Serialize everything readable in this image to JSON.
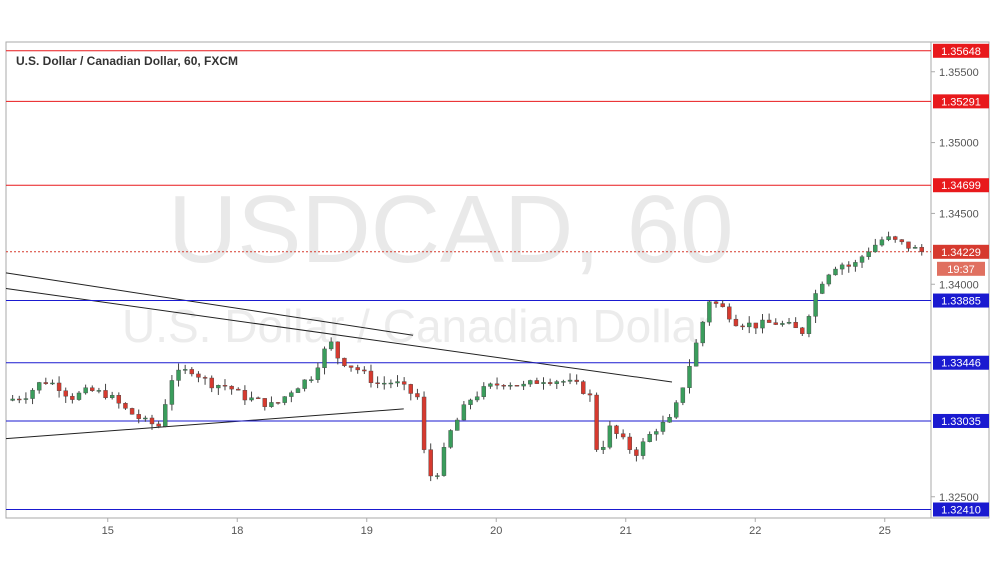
{
  "chart_data": {
    "type": "candlestick",
    "title": "U.S. Dollar / Canadian Dollar, 60, FXCM",
    "watermark": "USDCAD, 60",
    "watermark_sub": "U.S. Dollar / Canadian Dollar",
    "ylim": [
      1.3235,
      1.3571
    ],
    "y_ticks": [
      "1.35500",
      "1.35000",
      "1.34500",
      "1.34000",
      "1.32500"
    ],
    "x_ticks": [
      "15",
      "18",
      "19",
      "20",
      "21",
      "22",
      "25"
    ],
    "current_price": "1.34229",
    "countdown": "19:37",
    "levels": [
      {
        "value": 1.35648,
        "label": "1.35648",
        "color": "#e8191c"
      },
      {
        "value": 1.35291,
        "label": "1.35291",
        "color": "#e8191c"
      },
      {
        "value": 1.34699,
        "label": "1.34699",
        "color": "#e8191c"
      },
      {
        "value": 1.33885,
        "label": "1.33885",
        "color": "#1a1ad0"
      },
      {
        "value": 1.33446,
        "label": "1.33446",
        "color": "#1a1ad0"
      },
      {
        "value": 1.33035,
        "label": "1.33035",
        "color": "#1a1ad0"
      },
      {
        "value": 1.3241,
        "label": "1.32410",
        "color": "#1a1ad0"
      }
    ],
    "colors": {
      "up": "#3a9d5c",
      "down": "#d63a2f",
      "resistance": "#e8191c",
      "support": "#1a1ad0",
      "trendline": "#222222"
    },
    "trendlines": [
      {
        "x1": 0.0,
        "y1": 1.3408,
        "x2": 0.44,
        "y2": 1.3364
      },
      {
        "x1": 0.0,
        "y1": 1.3397,
        "x2": 0.72,
        "y2": 1.3331
      },
      {
        "x1": 0.0,
        "y1": 1.3291,
        "x2": 0.43,
        "y2": 1.3312
      }
    ],
    "price_path": [
      [
        0.0,
        1.3318
      ],
      [
        0.02,
        1.3321
      ],
      [
        0.04,
        1.3332
      ],
      [
        0.055,
        1.3329
      ],
      [
        0.07,
        1.332
      ],
      [
        0.09,
        1.3325
      ],
      [
        0.11,
        1.3322
      ],
      [
        0.13,
        1.3311
      ],
      [
        0.15,
        1.3303
      ],
      [
        0.165,
        1.33
      ],
      [
        0.18,
        1.3335
      ],
      [
        0.2,
        1.334
      ],
      [
        0.22,
        1.333
      ],
      [
        0.24,
        1.3328
      ],
      [
        0.255,
        1.3321
      ],
      [
        0.27,
        1.3318
      ],
      [
        0.29,
        1.3314
      ],
      [
        0.31,
        1.3326
      ],
      [
        0.33,
        1.3335
      ],
      [
        0.35,
        1.336
      ],
      [
        0.36,
        1.3347
      ],
      [
        0.38,
        1.334
      ],
      [
        0.4,
        1.333
      ],
      [
        0.42,
        1.3331
      ],
      [
        0.445,
        1.332
      ],
      [
        0.455,
        1.3265
      ],
      [
        0.465,
        1.3265
      ],
      [
        0.48,
        1.3295
      ],
      [
        0.5,
        1.3318
      ],
      [
        0.52,
        1.3327
      ],
      [
        0.54,
        1.3331
      ],
      [
        0.56,
        1.3328
      ],
      [
        0.58,
        1.3333
      ],
      [
        0.6,
        1.3332
      ],
      [
        0.62,
        1.3328
      ],
      [
        0.635,
        1.3318
      ],
      [
        0.64,
        1.327
      ],
      [
        0.65,
        1.33
      ],
      [
        0.665,
        1.3291
      ],
      [
        0.68,
        1.328
      ],
      [
        0.7,
        1.3297
      ],
      [
        0.72,
        1.3305
      ],
      [
        0.735,
        1.3335
      ],
      [
        0.75,
        1.3366
      ],
      [
        0.76,
        1.3389
      ],
      [
        0.775,
        1.3383
      ],
      [
        0.79,
        1.3373
      ],
      [
        0.81,
        1.3371
      ],
      [
        0.83,
        1.3373
      ],
      [
        0.85,
        1.337
      ],
      [
        0.86,
        1.3365
      ],
      [
        0.875,
        1.3393
      ],
      [
        0.885,
        1.3406
      ],
      [
        0.9,
        1.3415
      ],
      [
        0.915,
        1.3412
      ],
      [
        0.93,
        1.3423
      ],
      [
        0.95,
        1.3433
      ],
      [
        0.97,
        1.3428
      ],
      [
        0.99,
        1.3423
      ]
    ]
  }
}
